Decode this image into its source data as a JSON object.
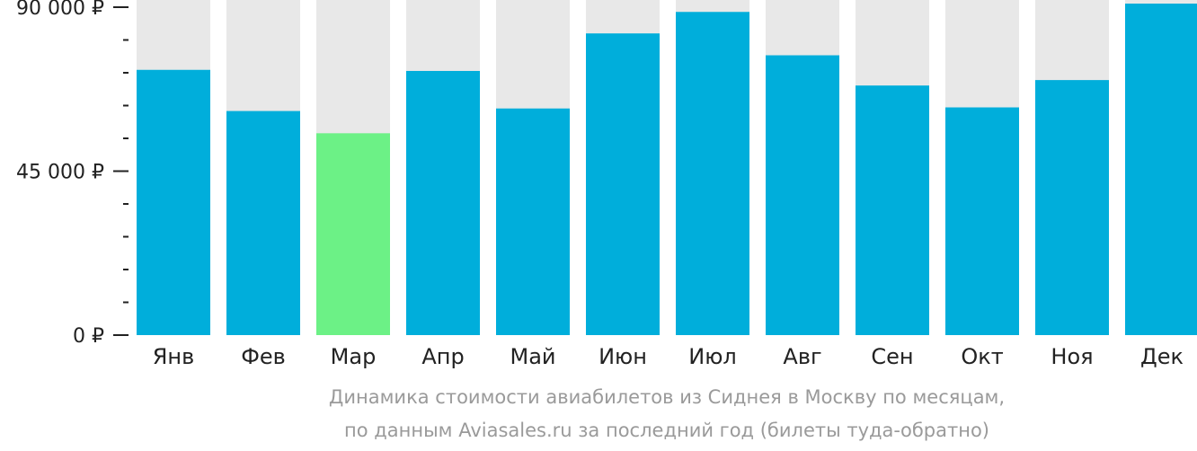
{
  "chart_data": {
    "type": "bar",
    "categories": [
      "Янв",
      "Фев",
      "Мар",
      "Апр",
      "Май",
      "Июн",
      "Июл",
      "Авг",
      "Сен",
      "Окт",
      "Ноя",
      "Дек"
    ],
    "values": [
      72800,
      61500,
      55400,
      72500,
      62200,
      82800,
      88700,
      76800,
      68500,
      62500,
      70000,
      93500
    ],
    "ylim": [
      0,
      90000
    ],
    "yticks": [
      0,
      45000,
      90000
    ],
    "ytick_labels": [
      "0 ₽",
      "45 000 ₽",
      "90 000 ₽"
    ],
    "minor_ticks_per_interval": 5,
    "highlight_category": "Мар",
    "colors": {
      "bar": "#00aedb",
      "highlight": "#6cf186",
      "background_bar": "#e8e8e8",
      "axis": "#222222"
    },
    "caption": [
      "Динамика стоимости авиабилетов из Сиднея в Москву по месяцам,",
      "по данным Aviasales.ru за последний год (билеты туда-обратно)"
    ]
  }
}
